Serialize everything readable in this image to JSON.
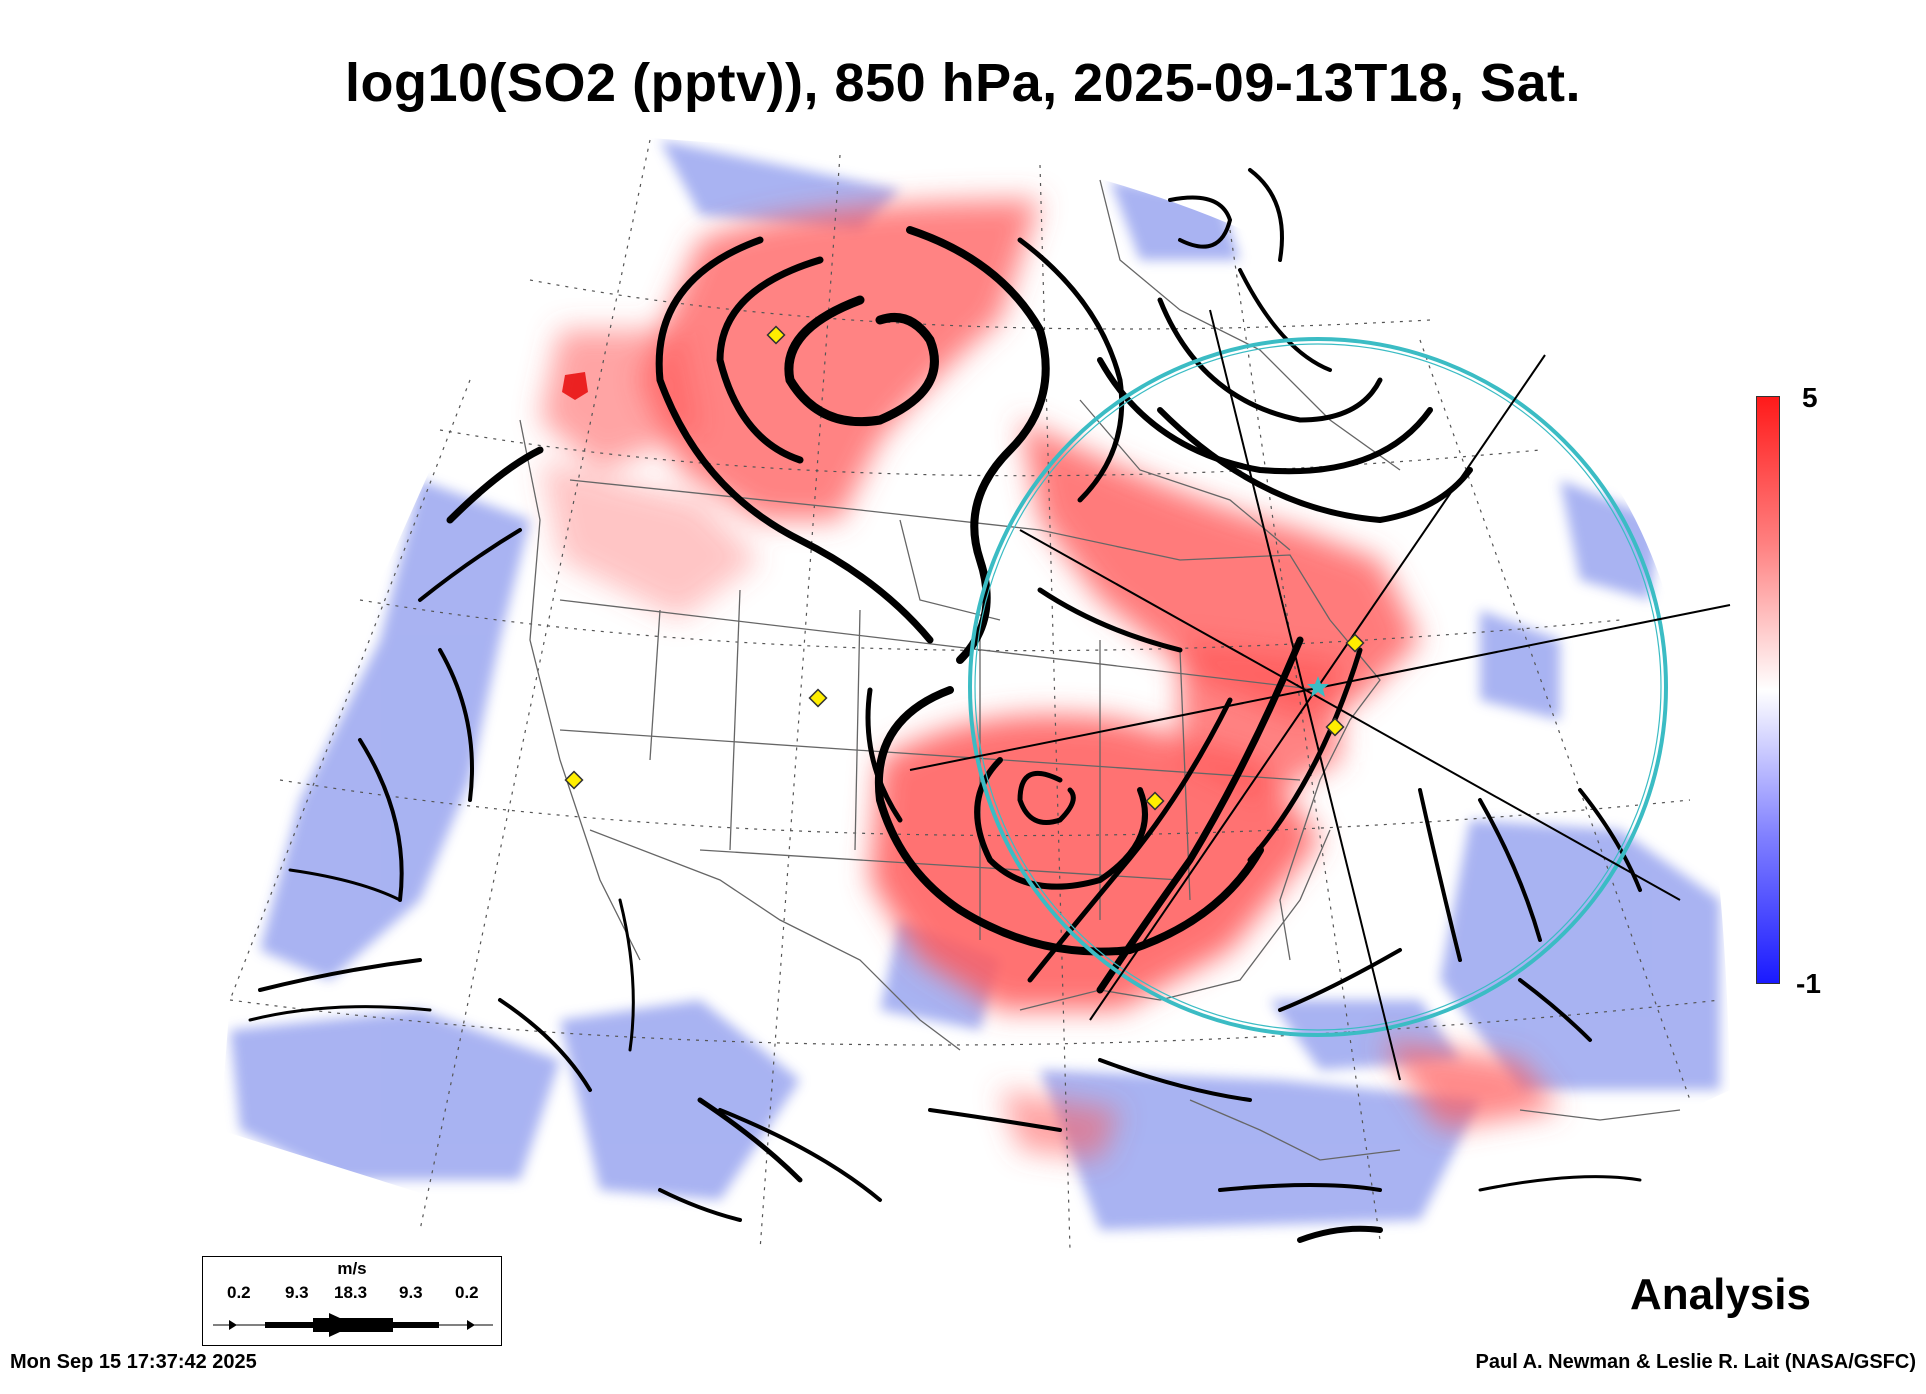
{
  "title": "log10(SO2 (pptv)), 850 hPa, 2025-09-13T18, Sat.",
  "colorbar": {
    "max_label": "5",
    "min_label": "-1",
    "colors": [
      "#ff1a1a",
      "#ffffff",
      "#1a1aff"
    ]
  },
  "analysis_label": "Analysis",
  "timestamp": "Mon Sep 15 17:37:42 2025",
  "credit": "Paul A. Newman & Leslie R. Lait (NASA/GSFC)",
  "wind_legend": {
    "unit": "m/s",
    "values": [
      "0.2",
      "9.3",
      "18.3",
      "9.3",
      "0.2"
    ]
  },
  "colors": {
    "high_so2": "#ff5a5a",
    "low_so2": "#9aa6f0",
    "ring": "#3bbcc4",
    "site_marker": "#ffee00",
    "streamline": "#000000"
  }
}
